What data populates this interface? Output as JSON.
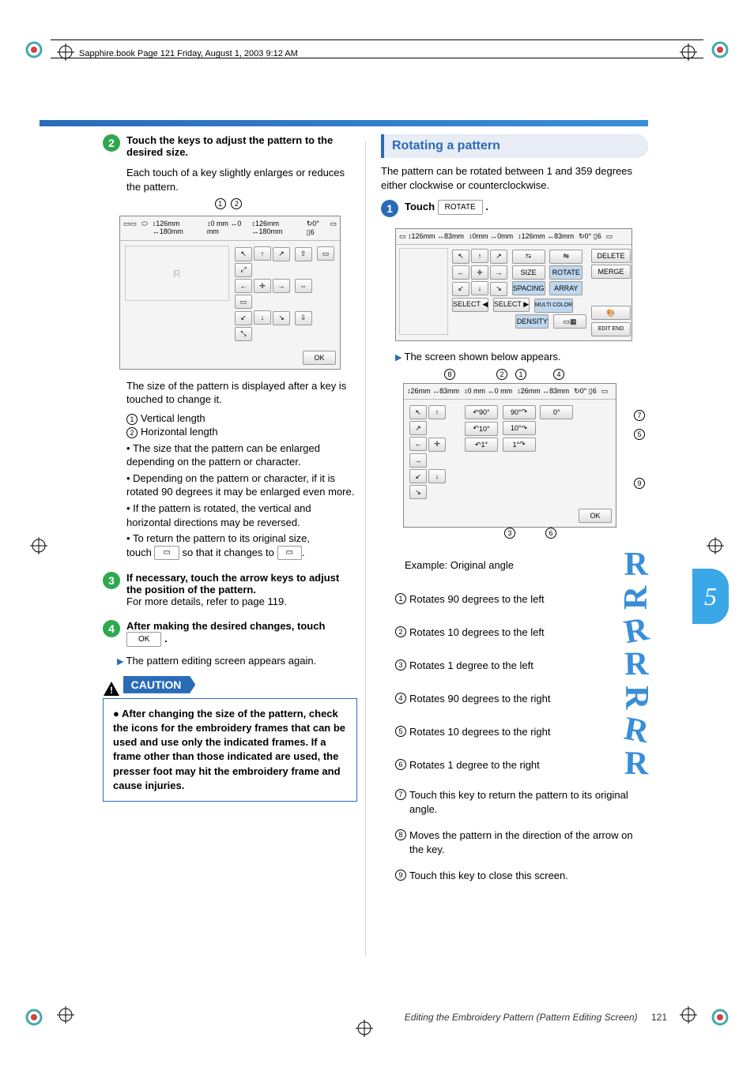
{
  "book_header": "Sapphire.book  Page 121  Friday, August 1, 2003  9:12 AM",
  "footer": {
    "title": "Editing the Embroidery Pattern (Pattern Editing Screen)",
    "page": "121"
  },
  "chapter_tab": "5",
  "left": {
    "step2": {
      "num": "2",
      "title": "Touch the keys to adjust the pattern to the desired size.",
      "body": "Each touch of a key slightly enlarges or reduces the pattern."
    },
    "screen1": {
      "top_vals": [
        "126mm",
        "180mm",
        "0 mm",
        "0 mm",
        "126mm",
        "180mm",
        "0°",
        "6"
      ],
      "callout_1": "1",
      "callout_2": "2",
      "ok": "OK"
    },
    "after_screen1": "The size of the pattern is displayed after a key is touched to change it.",
    "spec1": {
      "n": "1",
      "t": "Vertical length"
    },
    "spec2": {
      "n": "2",
      "t": "Horizontal length"
    },
    "bullets": [
      "The size that the pattern can be enlarged depending on the pattern or character.",
      "Depending on the pattern or character, if it is rotated 90 degrees it may be enlarged even more.",
      "If the pattern is rotated, the vertical and horizontal directions may be reversed.",
      "To return the pattern to its original size,"
    ],
    "bullet_tail": "so that it changes to",
    "bullet_tail_prefix": "touch",
    "step3": {
      "num": "3",
      "title": "If necessary, touch the arrow keys to adjust the position of the pattern.",
      "body": "For more details, refer to page 119."
    },
    "step4": {
      "num": "4",
      "title_a": "After making the desired changes, touch",
      "ok": "OK",
      "title_b": "."
    },
    "arrow_note": "The pattern editing screen appears again.",
    "caution_label": "CAUTION",
    "caution_body": "After changing the size of the pattern, check the icons for the embroidery frames that can be used and use only the indicated frames. If a frame other than those indicated are used, the presser foot may hit the embroidery frame and cause injuries."
  },
  "right": {
    "heading": "Rotating a pattern",
    "intro": "The pattern can be rotated between 1 and 359 degrees either clockwise or counterclockwise.",
    "step1": {
      "num": "1",
      "title": "Touch",
      "key": "ROTATE",
      "tail": "."
    },
    "screen2": {
      "vals": [
        "126mm",
        "83mm",
        "0mm",
        "0mm",
        "126mm",
        "83mm",
        "0°",
        "6"
      ],
      "side": [
        "DELETE",
        "MERGE",
        "EDIT END"
      ],
      "mid": [
        "SIZE",
        "ROTATE",
        "SPACING",
        "ARRAY",
        "MULTI COLOR",
        "DENSITY"
      ],
      "select_l": "SELECT ◀",
      "select_r": "SELECT ▶"
    },
    "arrow_note": "The screen shown below appears.",
    "screen3": {
      "vals": [
        "26mm",
        "83mm",
        "0 mm",
        "0 mm",
        "26mm",
        "83mm",
        "0°",
        "6"
      ],
      "rot_labels": [
        "90°",
        "90°",
        "0°",
        "10°",
        "10°",
        "1°",
        "1°"
      ],
      "ok": "OK",
      "callouts": [
        "1",
        "2",
        "3",
        "4",
        "5",
        "6",
        "7",
        "8",
        "9"
      ]
    },
    "example_label": "Example: Original angle",
    "descs": [
      {
        "n": "1",
        "t": "Rotates 90 degrees to the left",
        "r": "R",
        "rot": -90
      },
      {
        "n": "2",
        "t": "Rotates 10 degrees to the left",
        "r": "R",
        "rot": -10
      },
      {
        "n": "3",
        "t": "Rotates 1 degree to the left",
        "r": "R",
        "rot": -1
      },
      {
        "n": "4",
        "t": "Rotates 90 degrees to the right",
        "r": "R",
        "rot": 90
      },
      {
        "n": "5",
        "t": "Rotates 10 degrees to the right",
        "r": "R",
        "rot": 10
      },
      {
        "n": "6",
        "t": "Rotates 1 degree to the right",
        "r": "R",
        "rot": 1
      },
      {
        "n": "7",
        "t": "Touch this key to return the pattern to its original angle."
      },
      {
        "n": "8",
        "t": "Moves the pattern in the direction of the arrow on the key."
      },
      {
        "n": "9",
        "t": "Touch this key to close this screen."
      }
    ]
  },
  "colors": {
    "brand_blue": "#2a6bb8",
    "light_blue": "#3aa7e6",
    "green": "#2fa84f"
  }
}
